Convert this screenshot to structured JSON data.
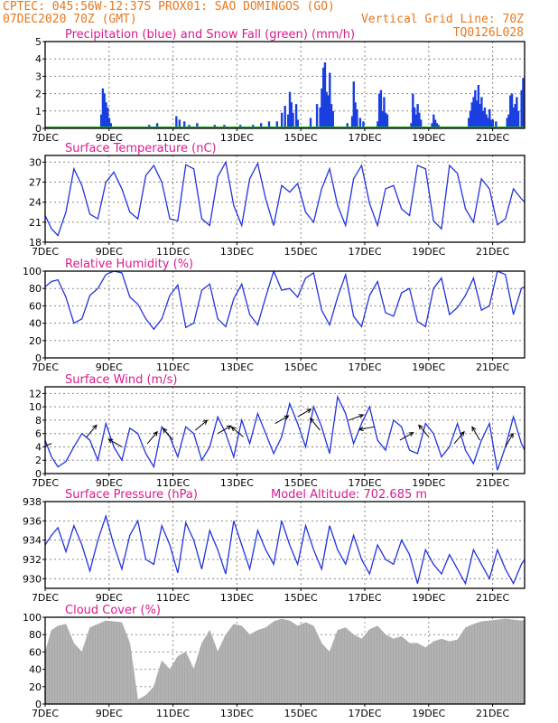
{
  "header": {
    "line1": "CPTEC:   045:56W-12:37S   PROX01: SAO DOMINGOS (GO)",
    "date": "07DEC2020 70Z (GMT)",
    "grid_note": "Vertical Grid Line: 70Z",
    "code": "TQ0126L028",
    "altitude_note": "Model Altitude: 702.685 m"
  },
  "colors": {
    "header": "#e8781e",
    "title": "#d81b8c",
    "line": "#2233dd",
    "bar": "#1a3fe0",
    "snow": "#22aa22",
    "cloud": "#a9a9a9"
  },
  "x_axis": {
    "start_label": "7DEC",
    "end_day": 22.0,
    "ticks": [
      {
        "day": 7,
        "label": "7DEC"
      },
      {
        "day": 9,
        "label": "9DEC"
      },
      {
        "day": 11,
        "label": "11DEC"
      },
      {
        "day": 13,
        "label": "13DEC"
      },
      {
        "day": 15,
        "label": "15DEC"
      },
      {
        "day": 17,
        "label": "17DEC"
      },
      {
        "day": 19,
        "label": "19DEC"
      },
      {
        "day": 21,
        "label": "21DEC"
      }
    ]
  },
  "chart_data": [
    {
      "type": "bar",
      "title": "Precipitation (blue) and Snow Fall (green) (mm/h)",
      "ylim": [
        0,
        5
      ],
      "yticks": [
        "0",
        "1",
        "2",
        "3",
        "4",
        "5"
      ],
      "series": [
        {
          "name": "Precipitation (blue)",
          "x": [
            8.75,
            8.8,
            8.85,
            8.9,
            8.95,
            9.0,
            9.05,
            10.25,
            10.5,
            11.1,
            11.2,
            11.35,
            11.5,
            11.75,
            12.0,
            12.3,
            12.6,
            13.1,
            13.5,
            13.75,
            14.0,
            14.25,
            14.4,
            14.5,
            14.6,
            14.65,
            14.7,
            14.75,
            14.85,
            14.9,
            15.3,
            15.5,
            15.6,
            15.65,
            15.7,
            15.75,
            15.8,
            15.85,
            15.9,
            15.95,
            16.0,
            16.45,
            16.6,
            16.65,
            16.7,
            16.75,
            16.85,
            16.95,
            17.4,
            17.45,
            17.5,
            17.55,
            17.6,
            17.65,
            17.7,
            18.45,
            18.5,
            18.55,
            18.6,
            18.65,
            18.7,
            18.75,
            19.1,
            19.15,
            19.2,
            19.25,
            19.3,
            19.35,
            20.25,
            20.3,
            20.35,
            20.4,
            20.45,
            20.5,
            20.55,
            20.6,
            20.65,
            20.7,
            20.75,
            20.8,
            20.85,
            20.9,
            20.95,
            21.0,
            21.1,
            21.45,
            21.5,
            21.55,
            21.6,
            21.65,
            21.7,
            21.75,
            21.8,
            21.9,
            21.95,
            22.0
          ],
          "values": [
            0.8,
            2.3,
            2.0,
            1.5,
            1.2,
            0.6,
            0.3,
            0.2,
            0.3,
            0.7,
            0.5,
            0.4,
            0.2,
            0.3,
            0.1,
            0.2,
            0.2,
            0.2,
            0.2,
            0.3,
            0.4,
            0.4,
            0.9,
            1.3,
            0.8,
            2.1,
            1.5,
            0.9,
            1.4,
            0.5,
            0.6,
            1.4,
            1.2,
            2.3,
            3.5,
            3.8,
            2.1,
            1.9,
            3.2,
            1.4,
            1.0,
            0.3,
            0.7,
            2.7,
            1.5,
            1.1,
            0.6,
            0.4,
            0.4,
            2.0,
            2.2,
            1.0,
            1.8,
            0.9,
            0.8,
            0.3,
            2.0,
            1.2,
            0.8,
            1.4,
            0.9,
            0.5,
            0.3,
            0.8,
            0.5,
            0.3,
            0.2,
            0.1,
            0.6,
            1.0,
            1.5,
            1.8,
            2.2,
            1.6,
            2.5,
            1.4,
            1.8,
            1.0,
            1.2,
            0.8,
            0.6,
            1.1,
            0.5,
            0.5,
            0.4,
            0.6,
            0.8,
            1.9,
            2.0,
            1.2,
            1.4,
            1.8,
            1.0,
            2.2,
            2.9,
            1.4
          ]
        },
        {
          "name": "Snow Fall (green)",
          "x": [],
          "values": []
        }
      ]
    },
    {
      "type": "line",
      "title": "Surface Temperature (nC)",
      "ylim": [
        18,
        31
      ],
      "yticks": [
        "18",
        "21",
        "24",
        "27",
        "30"
      ],
      "x": [
        7.0,
        7.2,
        7.4,
        7.65,
        7.9,
        8.15,
        8.4,
        8.65,
        8.9,
        9.15,
        9.4,
        9.65,
        9.9,
        10.15,
        10.4,
        10.65,
        10.9,
        11.15,
        11.4,
        11.65,
        11.9,
        12.15,
        12.4,
        12.65,
        12.9,
        13.15,
        13.4,
        13.65,
        13.9,
        14.15,
        14.4,
        14.65,
        14.9,
        15.15,
        15.4,
        15.65,
        15.9,
        16.15,
        16.4,
        16.65,
        16.9,
        17.15,
        17.4,
        17.65,
        17.9,
        18.15,
        18.4,
        18.65,
        18.9,
        19.15,
        19.4,
        19.65,
        19.9,
        20.15,
        20.4,
        20.65,
        20.9,
        21.15,
        21.4,
        21.65,
        21.9,
        22.0
      ],
      "values": [
        22.0,
        20.0,
        19.0,
        22.5,
        29.0,
        26.5,
        22.2,
        21.5,
        27.0,
        28.5,
        26.0,
        22.5,
        21.5,
        28.0,
        29.5,
        27.0,
        21.5,
        21.2,
        29.6,
        29.0,
        21.5,
        20.5,
        27.8,
        30.0,
        23.5,
        20.5,
        27.5,
        29.8,
        24.5,
        20.5,
        26.5,
        25.5,
        26.8,
        22.5,
        21.0,
        26.0,
        29.0,
        23.5,
        20.5,
        27.5,
        29.5,
        23.8,
        20.5,
        26.0,
        26.5,
        23.0,
        22.0,
        29.5,
        29.0,
        21.2,
        20.0,
        29.5,
        28.3,
        23.0,
        21.0,
        27.5,
        26.0,
        20.6,
        21.5,
        26.0,
        24.5,
        24.0
      ]
    },
    {
      "type": "line",
      "title": "Relative Humidity (%)",
      "ylim": [
        0,
        100
      ],
      "yticks": [
        "0",
        "20",
        "40",
        "60",
        "80",
        "100"
      ],
      "x": [
        7.0,
        7.2,
        7.4,
        7.65,
        7.9,
        8.15,
        8.4,
        8.65,
        8.9,
        9.15,
        9.4,
        9.65,
        9.9,
        10.15,
        10.4,
        10.65,
        10.9,
        11.15,
        11.4,
        11.65,
        11.9,
        12.15,
        12.4,
        12.65,
        12.9,
        13.15,
        13.4,
        13.65,
        13.9,
        14.15,
        14.4,
        14.65,
        14.9,
        15.15,
        15.4,
        15.65,
        15.9,
        16.15,
        16.4,
        16.65,
        16.9,
        17.15,
        17.4,
        17.65,
        17.9,
        18.15,
        18.4,
        18.65,
        18.9,
        19.15,
        19.4,
        19.65,
        19.9,
        20.15,
        20.4,
        20.65,
        20.9,
        21.15,
        21.4,
        21.65,
        21.9,
        22.0
      ],
      "values": [
        82.0,
        88.0,
        90.0,
        70.0,
        40.0,
        45.0,
        72.0,
        80.0,
        96.0,
        100.0,
        98.0,
        70.0,
        62.0,
        45.0,
        33.0,
        45.0,
        72.0,
        84.0,
        35.0,
        40.0,
        78.0,
        85.0,
        45.0,
        36.0,
        68.0,
        85.0,
        50.0,
        38.0,
        70.0,
        100.0,
        78.0,
        80.0,
        70.0,
        92.0,
        98.0,
        55.0,
        38.0,
        70.0,
        96.0,
        48.0,
        36.0,
        72.0,
        88.0,
        52.0,
        48.0,
        75.0,
        80.0,
        42.0,
        36.0,
        80.0,
        92.0,
        50.0,
        58.0,
        72.0,
        92.0,
        55.0,
        60.0,
        100.0,
        96.0,
        50.0,
        80.0,
        82.0
      ]
    },
    {
      "type": "line",
      "title": "Surface Wind (m/s)",
      "ylim": [
        0,
        13
      ],
      "yticks": [
        "0",
        "2",
        "4",
        "6",
        "8",
        "10",
        "12"
      ],
      "x": [
        7.0,
        7.2,
        7.4,
        7.65,
        7.9,
        8.15,
        8.4,
        8.65,
        8.9,
        9.15,
        9.4,
        9.65,
        9.9,
        10.15,
        10.4,
        10.65,
        10.9,
        11.15,
        11.4,
        11.65,
        11.9,
        12.15,
        12.4,
        12.65,
        12.9,
        13.15,
        13.4,
        13.65,
        13.9,
        14.15,
        14.4,
        14.65,
        14.9,
        15.15,
        15.4,
        15.65,
        15.9,
        16.15,
        16.4,
        16.65,
        16.9,
        17.15,
        17.4,
        17.65,
        17.9,
        18.15,
        18.4,
        18.65,
        18.9,
        19.15,
        19.4,
        19.65,
        19.9,
        20.15,
        20.4,
        20.65,
        20.9,
        21.15,
        21.4,
        21.65,
        21.9,
        22.0
      ],
      "values": [
        5.0,
        2.5,
        1.0,
        1.8,
        4.0,
        6.0,
        5.0,
        2.0,
        7.5,
        4.0,
        2.0,
        6.8,
        6.0,
        3.0,
        1.0,
        7.0,
        5.5,
        2.5,
        7.0,
        6.0,
        2.0,
        4.0,
        8.5,
        6.0,
        2.5,
        8.0,
        4.5,
        9.0,
        6.0,
        3.0,
        5.5,
        10.5,
        7.5,
        4.0,
        10.0,
        7.0,
        3.0,
        11.5,
        9.0,
        4.5,
        7.5,
        10.0,
        5.0,
        3.5,
        8.0,
        7.0,
        3.5,
        3.0,
        7.5,
        6.0,
        2.5,
        4.0,
        7.5,
        3.5,
        1.5,
        5.0,
        7.5,
        0.5,
        4.0,
        8.5,
        4.5,
        3.5
      ],
      "arrows": [
        {
          "day": 7.2,
          "speed": 4.5,
          "dir": 250
        },
        {
          "day": 8.3,
          "speed": 5.5,
          "dir": 40
        },
        {
          "day": 9.4,
          "speed": 4.0,
          "dir": 300
        },
        {
          "day": 10.2,
          "speed": 4.5,
          "dir": 40
        },
        {
          "day": 11.0,
          "speed": 5.0,
          "dir": 320
        },
        {
          "day": 11.7,
          "speed": 6.5,
          "dir": 50
        },
        {
          "day": 12.4,
          "speed": 6.0,
          "dir": 60
        },
        {
          "day": 13.2,
          "speed": 5.5,
          "dir": 310
        },
        {
          "day": 14.2,
          "speed": 7.5,
          "dir": 60
        },
        {
          "day": 14.9,
          "speed": 8.5,
          "dir": 60
        },
        {
          "day": 15.6,
          "speed": 6.5,
          "dir": 320
        },
        {
          "day": 16.5,
          "speed": 8.0,
          "dir": 70
        },
        {
          "day": 17.3,
          "speed": 7.0,
          "dir": 260
        },
        {
          "day": 18.1,
          "speed": 5.0,
          "dir": 60
        },
        {
          "day": 19.0,
          "speed": 5.5,
          "dir": 320
        },
        {
          "day": 19.8,
          "speed": 4.5,
          "dir": 40
        },
        {
          "day": 20.6,
          "speed": 5.0,
          "dir": 330
        },
        {
          "day": 21.4,
          "speed": 4.0,
          "dir": 30
        }
      ]
    },
    {
      "type": "line",
      "title": "Surface Pressure (hPa)",
      "ylim": [
        929,
        938
      ],
      "yticks": [
        "930",
        "932",
        "934",
        "936",
        "938"
      ],
      "x": [
        7.0,
        7.2,
        7.4,
        7.65,
        7.9,
        8.15,
        8.4,
        8.65,
        8.9,
        9.15,
        9.4,
        9.65,
        9.9,
        10.15,
        10.4,
        10.65,
        10.9,
        11.15,
        11.4,
        11.65,
        11.9,
        12.15,
        12.4,
        12.65,
        12.9,
        13.15,
        13.4,
        13.65,
        13.9,
        14.15,
        14.4,
        14.65,
        14.9,
        15.15,
        15.4,
        15.65,
        15.9,
        16.15,
        16.4,
        16.65,
        16.9,
        17.15,
        17.4,
        17.65,
        17.9,
        18.15,
        18.4,
        18.65,
        18.9,
        19.15,
        19.4,
        19.65,
        19.9,
        20.15,
        20.4,
        20.65,
        20.9,
        21.15,
        21.4,
        21.65,
        21.9,
        22.0
      ],
      "values": [
        933.5,
        934.5,
        935.3,
        932.8,
        935.5,
        933.5,
        930.8,
        934.0,
        936.5,
        933.5,
        931.0,
        934.5,
        936.0,
        932.0,
        931.5,
        935.5,
        933.5,
        930.6,
        935.8,
        934.0,
        931.0,
        935.0,
        933.0,
        930.5,
        936.0,
        933.5,
        931.0,
        935.0,
        933.0,
        931.5,
        936.0,
        933.5,
        931.5,
        935.5,
        933.0,
        931.0,
        935.5,
        933.0,
        931.5,
        934.5,
        932.0,
        930.5,
        933.5,
        932.0,
        931.5,
        934.0,
        932.5,
        929.5,
        933.0,
        931.5,
        930.5,
        932.5,
        931.0,
        929.5,
        933.0,
        931.5,
        930.0,
        933.0,
        931.0,
        929.5,
        931.5,
        932.0
      ]
    },
    {
      "type": "area",
      "title": "Cloud Cover (%)",
      "ylim": [
        0,
        100
      ],
      "yticks": [
        "0",
        "20",
        "40",
        "60",
        "80",
        "100"
      ],
      "x": [
        7.0,
        7.2,
        7.4,
        7.65,
        7.9,
        8.15,
        8.4,
        8.65,
        8.9,
        9.15,
        9.4,
        9.65,
        9.9,
        10.15,
        10.4,
        10.65,
        10.9,
        11.15,
        11.4,
        11.65,
        11.9,
        12.15,
        12.4,
        12.65,
        12.9,
        13.15,
        13.4,
        13.65,
        13.9,
        14.15,
        14.4,
        14.65,
        14.9,
        15.15,
        15.4,
        15.65,
        15.9,
        16.15,
        16.4,
        16.65,
        16.9,
        17.15,
        17.4,
        17.65,
        17.9,
        18.15,
        18.4,
        18.65,
        18.9,
        19.15,
        19.4,
        19.65,
        19.9,
        20.15,
        20.4,
        20.65,
        20.9,
        21.15,
        21.4,
        21.65,
        21.9,
        22.0
      ],
      "values": [
        60.0,
        85.0,
        90.0,
        92.0,
        70.0,
        60.0,
        88.0,
        92.0,
        96.0,
        95.0,
        94.0,
        70.0,
        5.0,
        10.0,
        20.0,
        50.0,
        40.0,
        55.0,
        60.0,
        40.0,
        70.0,
        85.0,
        60.0,
        80.0,
        92.0,
        90.0,
        80.0,
        85.0,
        88.0,
        95.0,
        98.0,
        96.0,
        90.0,
        94.0,
        90.0,
        70.0,
        60.0,
        85.0,
        88.0,
        80.0,
        75.0,
        86.0,
        90.0,
        80.0,
        75.0,
        78.0,
        70.0,
        70.0,
        65.0,
        72.0,
        75.0,
        72.0,
        74.0,
        88.0,
        92.0,
        95.0,
        96.0,
        97.0,
        98.0,
        97.0,
        96.0,
        97.0
      ]
    }
  ]
}
